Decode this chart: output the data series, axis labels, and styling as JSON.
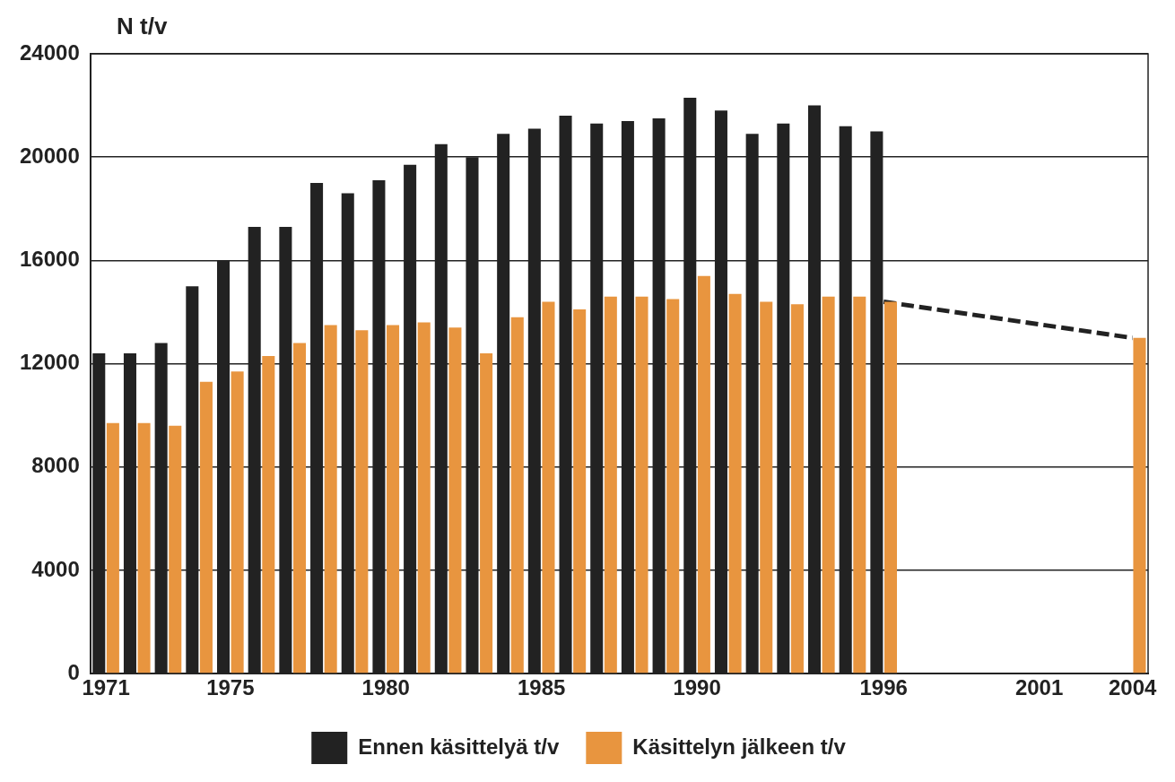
{
  "chart_data": {
    "type": "bar",
    "ylabel": "N t/v",
    "categories": [
      "1971",
      null,
      null,
      null,
      "1975",
      null,
      null,
      null,
      null,
      "1980",
      null,
      null,
      null,
      null,
      "1985",
      null,
      null,
      null,
      null,
      "1990",
      null,
      null,
      null,
      null,
      null,
      "1996",
      null,
      null,
      null,
      null,
      "2001",
      null,
      null,
      "2004"
    ],
    "series": [
      {
        "name": "Ennen käsittelyä t/v",
        "color": "#222222",
        "values": [
          12400,
          12400,
          12800,
          15000,
          16000,
          17300,
          17300,
          19000,
          18600,
          19100,
          19700,
          20500,
          20000,
          20900,
          21100,
          21600,
          21300,
          21400,
          21500,
          22300,
          21800,
          20900,
          21300,
          22000,
          21200,
          21000,
          null,
          null,
          null,
          null,
          null,
          null,
          null,
          null
        ]
      },
      {
        "name": "Käsittelyn jälkeen t/v",
        "color": "#e8953f",
        "values": [
          9700,
          9700,
          9600,
          11300,
          11700,
          12300,
          12800,
          13500,
          13300,
          13500,
          13600,
          13400,
          12400,
          13800,
          14400,
          14100,
          14600,
          14600,
          14500,
          15400,
          14700,
          14400,
          14300,
          14600,
          14600,
          14400,
          null,
          null,
          null,
          null,
          null,
          null,
          null,
          13000
        ]
      },
      {
        "type": "line",
        "color": "#222222",
        "line_style": "dashed",
        "marker": "none",
        "values": [
          null,
          null,
          null,
          null,
          null,
          null,
          null,
          null,
          null,
          null,
          null,
          null,
          null,
          null,
          null,
          null,
          null,
          null,
          null,
          null,
          null,
          null,
          null,
          null,
          null,
          14400,
          null,
          null,
          null,
          null,
          null,
          null,
          null,
          13000
        ]
      }
    ],
    "ylim": [
      0,
      24000
    ],
    "yticks": [
      0,
      4000,
      8000,
      12000,
      16000,
      20000,
      24000
    ],
    "grid": "y",
    "legend": "bottom"
  }
}
